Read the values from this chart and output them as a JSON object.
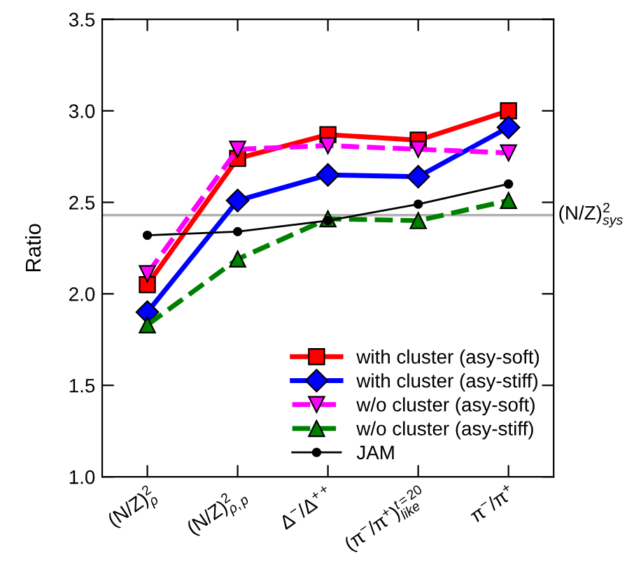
{
  "chart_data": {
    "type": "line",
    "ylabel": "Ratio",
    "categories": [
      "(N/Z)$^{2}$$_{ρ}$",
      "(N/Z)$^{2}$$_{ρ,p}$",
      "Δ$^{−}$/Δ$^{++}$",
      "(π$^{−}$/π$^{+}$)$^{t=20}$$_{like}$",
      "π$^{−}$/π$^{+}$"
    ],
    "series": [
      {
        "name": "with cluster (asy-soft)",
        "color": "#ff0000",
        "values": [
          2.05,
          2.74,
          2.87,
          2.84,
          3.0
        ],
        "marker": "square",
        "line_style": "solid"
      },
      {
        "name": "with cluster (asy-stiff)",
        "color": "#0000ff",
        "values": [
          1.9,
          2.51,
          2.65,
          2.64,
          2.91
        ],
        "marker": "diamond",
        "line_style": "solid"
      },
      {
        "name": "w/o cluster (asy-soft)",
        "color": "#ff00ff",
        "values": [
          2.11,
          2.79,
          2.81,
          2.79,
          2.77
        ],
        "marker": "triangle_down",
        "line_style": "dashed"
      },
      {
        "name": "w/o cluster (asy-stiff)",
        "color": "#008000",
        "values": [
          1.83,
          2.19,
          2.41,
          2.4,
          2.51
        ],
        "marker": "triangle",
        "line_style": "dashed"
      },
      {
        "name": "JAM",
        "color": "#000000",
        "values": [
          2.32,
          2.34,
          2.4,
          2.49,
          2.6
        ],
        "marker": "circle",
        "line_style": "solid"
      }
    ],
    "ylim": [
      1.0,
      3.5
    ],
    "yticks": [
      {
        "value": 1,
        "label": "1.0"
      },
      1.5,
      {
        "value": 2,
        "label": "2.0"
      },
      2.5,
      {
        "value": 3,
        "label": "3.0"
      },
      3.5
    ],
    "ref_lines": [
      {
        "axis": "y",
        "value": 2.43,
        "label": "(N/Z)$^{2}$$_{sys}$",
        "color": "#b0b0b0"
      }
    ],
    "legend": "bottom right",
    "grid": false
  }
}
